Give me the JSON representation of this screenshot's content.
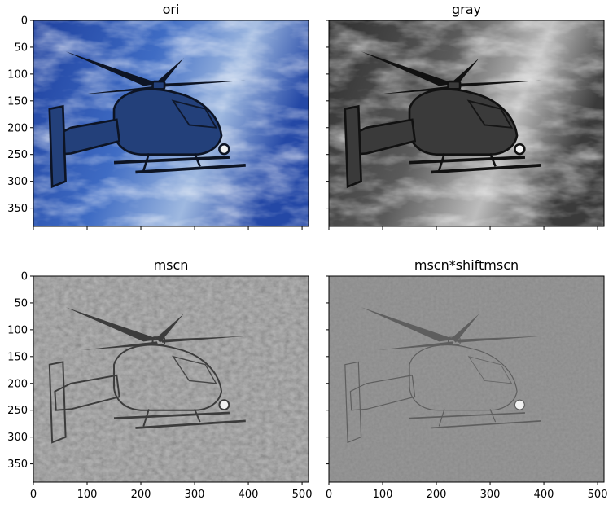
{
  "chart_data": [
    {
      "type": "image",
      "title": "ori",
      "content": "color",
      "xlim": [
        0,
        512
      ],
      "ylim": [
        384,
        0
      ],
      "xticks": [
        0,
        100,
        200,
        300,
        400,
        500
      ],
      "yticks": [
        0,
        50,
        100,
        150,
        200,
        250,
        300,
        350
      ],
      "show_xtick_labels": false,
      "show_ytick_labels": true
    },
    {
      "type": "image",
      "title": "gray",
      "content": "gray",
      "xlim": [
        0,
        512
      ],
      "ylim": [
        384,
        0
      ],
      "xticks": [
        0,
        100,
        200,
        300,
        400,
        500
      ],
      "yticks": [
        0,
        50,
        100,
        150,
        200,
        250,
        300,
        350
      ],
      "show_xtick_labels": false,
      "show_ytick_labels": false
    },
    {
      "type": "image",
      "title": "mscn",
      "content": "mscn",
      "xlim": [
        0,
        512
      ],
      "ylim": [
        384,
        0
      ],
      "xticks": [
        0,
        100,
        200,
        300,
        400,
        500
      ],
      "yticks": [
        0,
        50,
        100,
        150,
        200,
        250,
        300,
        350
      ],
      "show_xtick_labels": true,
      "show_ytick_labels": true
    },
    {
      "type": "image",
      "title": "mscn*shiftmscn",
      "content": "product",
      "xlim": [
        0,
        512
      ],
      "ylim": [
        384,
        0
      ],
      "xticks": [
        0,
        100,
        200,
        300,
        400,
        500
      ],
      "yticks": [
        0,
        50,
        100,
        150,
        200,
        250,
        300,
        350
      ],
      "show_xtick_labels": true,
      "show_ytick_labels": false
    }
  ]
}
